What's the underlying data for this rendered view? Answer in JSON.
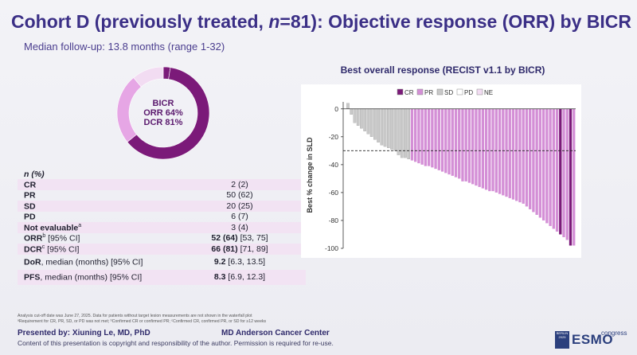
{
  "header": {
    "title_part1": "Cohort D (previously treated, ",
    "title_n": "n",
    "title_part2": "=81): Objective response (ORR) by BICR",
    "subtitle": "Median follow-up: 13.8 months (range 1-32)"
  },
  "donut": {
    "line1": "BICR",
    "line2": "ORR 64%",
    "line3": "DCR 81%",
    "segments": [
      {
        "label": "CR",
        "value": 2,
        "color": "#7b1a79"
      },
      {
        "label": "PR",
        "value": 50,
        "color": "#7b1a79"
      },
      {
        "label": "SD",
        "value": 20,
        "color": "#e6a6e5"
      },
      {
        "label": "other",
        "value": 9,
        "color": "#f2dcf2"
      }
    ]
  },
  "table": {
    "header": "n (%)",
    "rows": [
      {
        "label": "CR",
        "sup": "",
        "extra": "",
        "bold": "",
        "value": "2 (2)"
      },
      {
        "label": "PR",
        "sup": "",
        "extra": "",
        "bold": "",
        "value": "50 (62)"
      },
      {
        "label": "SD",
        "sup": "",
        "extra": "",
        "bold": "",
        "value": "20 (25)"
      },
      {
        "label": "PD",
        "sup": "",
        "extra": "",
        "bold": "",
        "value": "6 (7)"
      },
      {
        "label": "Not evaluable",
        "sup": "a",
        "extra": "",
        "bold": "",
        "value": "3 (4)"
      },
      {
        "label": "ORR",
        "sup": "b",
        "extra": " [95% CI]",
        "bold": "52 (64)",
        "value": " [53, 75]"
      },
      {
        "label": "DCR",
        "sup": "c",
        "extra": " [95% CI]",
        "bold": "66 (81)",
        "value": " [71, 89]"
      },
      {
        "label": "DoR",
        "sup": "",
        "extra": ", median (months) [95% CI]",
        "bold": "9.2",
        "value": " [6.3, 13.5]"
      },
      {
        "label": "PFS",
        "sup": "",
        "extra": ", median (months) [95% CI]",
        "bold": "8.3",
        "value": " [6.9, 12.3]"
      }
    ]
  },
  "footer": {
    "footnote1": "Analysis cut-off date was June 27, 2025. Data for patients without target lesion measurements are not shown in the waterfall plot",
    "footnote2": "ᵃRequirement for CR, PR, SD, or PD was not met; ᵇConfirmed CR or confirmed PR; ᶜConfirmed CR, confirmed PR, or SD for ≥12 weeks",
    "presenter": "Presented by: Xiuning Le, MD, PhD",
    "institution": "MD Anderson Cancer Center",
    "copyright": "Content of this presentation is copyright and responsibility of the author. Permission is required for re-use.",
    "logo_badge": "BERLIN 2025",
    "logo_text": "ESMO",
    "logo_congress": "congress"
  },
  "colors": {
    "CR": "#7b1a79",
    "PR": "#d48fd6",
    "SD": "#c9c9c9",
    "PD": "#ffffff",
    "NE": "#f2dcf2"
  },
  "chart_data": {
    "type": "bar",
    "title": "Best overall response (RECIST v1.1 by BICR)",
    "ylabel": "Best % change in SLD",
    "xlabel": "",
    "ylim": [
      -100,
      5
    ],
    "yticks": [
      0,
      -20,
      -40,
      -60,
      -80,
      -100
    ],
    "reference_line": -30,
    "legend_position": "top",
    "legend": [
      "CR",
      "PR",
      "SD",
      "PD",
      "NE"
    ],
    "values": [
      4,
      -4,
      -10,
      -12,
      -14,
      -16,
      -18,
      -20,
      -22,
      -24,
      -26,
      -27,
      -28,
      -29,
      -30,
      -33,
      -35,
      -35,
      -36,
      -37,
      -38,
      -39,
      -40,
      -41,
      -41,
      -42,
      -43,
      -44,
      -45,
      -46,
      -47,
      -48,
      -49,
      -50,
      -52,
      -52,
      -53,
      -54,
      -55,
      -56,
      -57,
      -58,
      -59,
      -59,
      -60,
      -61,
      -62,
      -63,
      -64,
      -65,
      -66,
      -67,
      -68,
      -70,
      -72,
      -74,
      -76,
      -78,
      -80,
      -82,
      -84,
      -86,
      -88,
      -90,
      -92,
      -94,
      -98,
      -98
    ],
    "categories_by_bar": [
      "SD",
      "SD",
      "SD",
      "SD",
      "SD",
      "SD",
      "SD",
      "SD",
      "SD",
      "SD",
      "SD",
      "SD",
      "SD",
      "SD",
      "SD",
      "SD",
      "SD",
      "SD",
      "SD",
      "PR",
      "PR",
      "PR",
      "PR",
      "PR",
      "PR",
      "PR",
      "PR",
      "PR",
      "PR",
      "PR",
      "PR",
      "PR",
      "PR",
      "PR",
      "PR",
      "PR",
      "PR",
      "PR",
      "PR",
      "PR",
      "PR",
      "PR",
      "PR",
      "PR",
      "PR",
      "PR",
      "PR",
      "PR",
      "PR",
      "PR",
      "PR",
      "PR",
      "PR",
      "PR",
      "PR",
      "PR",
      "PR",
      "PR",
      "PR",
      "PR",
      "PR",
      "PR",
      "PR",
      "CR",
      "PR",
      "PR",
      "CR",
      "PR"
    ]
  }
}
